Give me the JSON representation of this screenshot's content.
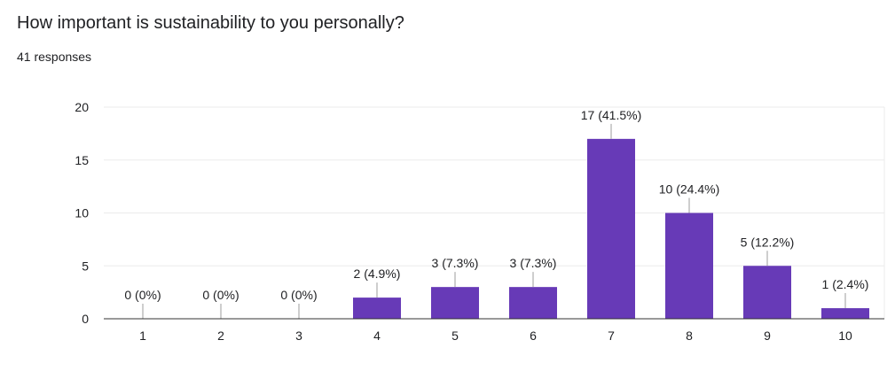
{
  "question": {
    "title": "How important is sustainability to you personally?",
    "responses": "41 responses"
  },
  "colors": {
    "bar": "#673ab7",
    "grid": "#ebebeb",
    "axis": "#333333",
    "leader": "#9e9e9e"
  },
  "chart_data": {
    "type": "bar",
    "categories": [
      "1",
      "2",
      "3",
      "4",
      "5",
      "6",
      "7",
      "8",
      "9",
      "10"
    ],
    "values": [
      0,
      0,
      0,
      2,
      3,
      3,
      17,
      10,
      5,
      1
    ],
    "data_labels": [
      "0 (0%)",
      "0 (0%)",
      "0 (0%)",
      "2 (4.9%)",
      "3 (7.3%)",
      "3 (7.3%)",
      "17 (41.5%)",
      "10 (24.4%)",
      "5 (12.2%)",
      "1 (2.4%)"
    ],
    "yticks": [
      0,
      5,
      10,
      15,
      20
    ],
    "ylim": [
      0,
      20
    ],
    "grid": true,
    "legend": "none"
  }
}
